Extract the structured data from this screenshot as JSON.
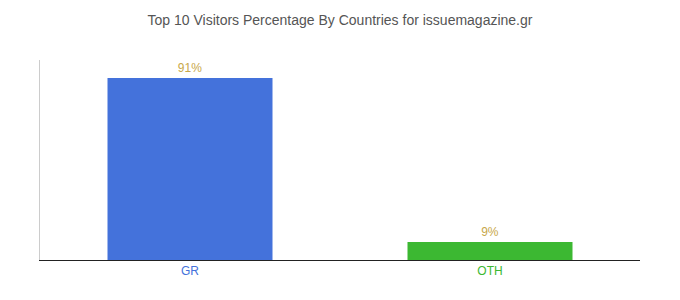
{
  "chart_data": {
    "type": "bar",
    "title": "Top 10 Visitors Percentage By Countries for issuemagazine.gr",
    "categories": [
      "GR",
      "OTH"
    ],
    "values": [
      91,
      9
    ],
    "value_labels": [
      "91%",
      "9%"
    ],
    "colors": [
      "#4472db",
      "#3cb832"
    ],
    "ylim": [
      0,
      100
    ],
    "grid": false,
    "data_labels": true,
    "tick_labels": "x"
  }
}
